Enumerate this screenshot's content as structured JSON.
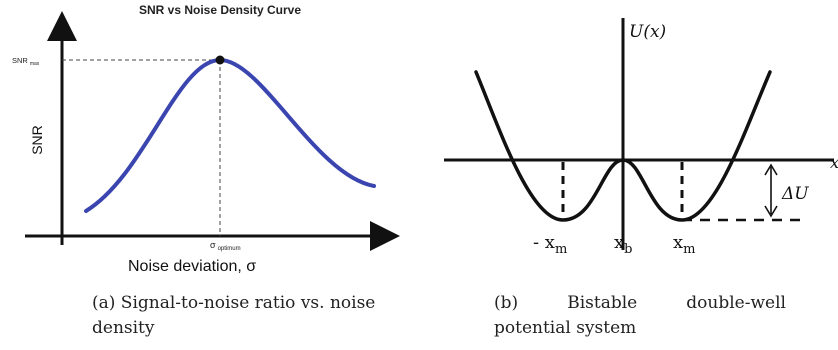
{
  "panel_a": {
    "title": "SNR vs Noise Density Curve",
    "ylabel": "SNR",
    "snr_max_label": "SNR",
    "snr_max_sub": "max",
    "xlabel": "Noise deviation, σ",
    "sigma_label": "σ",
    "sigma_sub": "optimum",
    "curve_color": "#3a45b0",
    "caption": "(a) Signal-to-noise ratio vs. noise density"
  },
  "panel_b": {
    "ylabel": "U(x)",
    "axis_x_label": "x",
    "delta_u": "ΔU",
    "label_neg_xm": "- x",
    "label_neg_xm_sub": "m",
    "label_xb": "x",
    "label_xb_sub": "b",
    "label_xm": "x",
    "label_xm_sub": "m",
    "caption_l1_a": "(b)",
    "caption_l1_b": "Bistable",
    "caption_l1_c": "double-well",
    "caption_l2": "potential system"
  }
}
